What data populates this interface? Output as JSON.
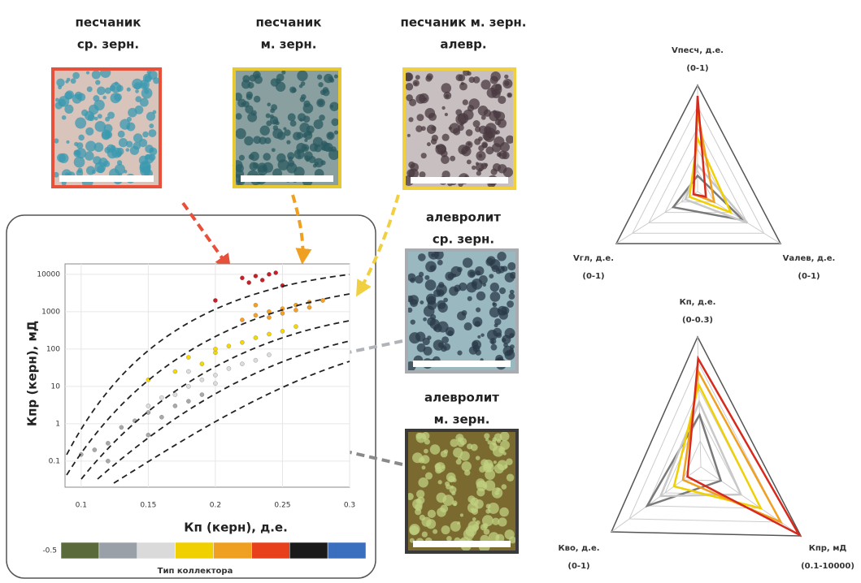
{
  "thin_sections": [
    {
      "lines": [
        "песчаник",
        "ср. зерн."
      ],
      "frame": "#e8503a",
      "base": "#d9c4bc",
      "grain": "#3a9ab0"
    },
    {
      "lines": [
        "песчаник",
        "м. зерн."
      ],
      "frame": "#e8c830",
      "base": "#8aa0a0",
      "grain": "#2a5a60"
    },
    {
      "lines": [
        "песчаник м. зерн.",
        "алевр."
      ],
      "frame": "#f0d040",
      "base": "#c8c0c0",
      "grain": "#4a3a40"
    },
    {
      "lines": [
        "алевролит",
        "ср. зерн."
      ],
      "frame": "#a8acb0",
      "base": "#9ab8c0",
      "grain": "#2a3a48"
    },
    {
      "lines": [
        "алевролит",
        "м. зерн."
      ],
      "frame": "#3a3a3a",
      "base": "#7a6a30",
      "grain": "#c0d080"
    }
  ],
  "scatter": {
    "x_label": "Кп (керн), д.е.",
    "y_label": "Кпр (керн), мД",
    "xlim": [
      0.088,
      0.3
    ],
    "ylim": [
      0.02,
      19000
    ],
    "xticks": [
      0.1,
      0.15,
      0.2,
      0.25,
      0.3
    ],
    "yticks": [
      0.1,
      1,
      10,
      100,
      1000,
      10000
    ],
    "log_y": true,
    "series": [
      {
        "color": "#a8a8a8",
        "x": [
          0.1,
          0.12,
          0.13,
          0.14,
          0.15,
          0.16,
          0.17,
          0.18,
          0.12,
          0.15,
          0.19,
          0.11
        ],
        "y": [
          0.15,
          0.3,
          0.8,
          1.2,
          2,
          1.5,
          3,
          4,
          0.1,
          0.5,
          6,
          0.2
        ]
      },
      {
        "color": "#dcdcdc",
        "x": [
          0.15,
          0.17,
          0.18,
          0.19,
          0.2,
          0.21,
          0.22,
          0.23,
          0.16,
          0.2,
          0.24,
          0.18
        ],
        "y": [
          3,
          6,
          10,
          15,
          20,
          30,
          40,
          50,
          5,
          12,
          70,
          25
        ]
      },
      {
        "color": "#f5d800",
        "x": [
          0.15,
          0.17,
          0.19,
          0.2,
          0.21,
          0.22,
          0.23,
          0.24,
          0.18,
          0.25,
          0.26,
          0.2
        ],
        "y": [
          15,
          25,
          40,
          80,
          120,
          150,
          200,
          250,
          60,
          300,
          400,
          100
        ]
      },
      {
        "color": "#f5a020",
        "x": [
          0.22,
          0.23,
          0.24,
          0.25,
          0.26,
          0.27,
          0.28,
          0.24,
          0.25,
          0.26,
          0.27,
          0.23
        ],
        "y": [
          600,
          800,
          1000,
          1200,
          1500,
          1800,
          2000,
          700,
          900,
          1100,
          1300,
          1500
        ]
      },
      {
        "color": "#c81e28",
        "x": [
          0.2,
          0.22,
          0.225,
          0.23,
          0.235,
          0.24,
          0.245,
          0.25
        ],
        "y": [
          2000,
          8000,
          6000,
          9000,
          7000,
          10000,
          11000,
          5000
        ]
      }
    ]
  },
  "colorbar": {
    "label": "Тип коллектора",
    "start_label": "-0.5",
    "colors": [
      "#5a6a3a",
      "#9aa0a8",
      "#dadada",
      "#f0d000",
      "#f0a020",
      "#e8401c",
      "#1a1a1a",
      "#3a6fc0"
    ]
  },
  "radar_composition": {
    "axes": [
      {
        "name": "Vпесч, д.е.",
        "range_label": "(0-1)",
        "range": [
          0,
          1
        ]
      },
      {
        "name": "Vалев, д.е.",
        "range_label": "(0-1)",
        "range": [
          0,
          1
        ]
      },
      {
        "name": "Vгл, д.е.",
        "range_label": "(0-1)",
        "range": [
          0,
          1
        ]
      }
    ],
    "series": [
      {
        "color": "#7a7a7a",
        "values": [
          0.15,
          0.55,
          0.3
        ]
      },
      {
        "color": "#c8c8c8",
        "values": [
          0.25,
          0.6,
          0.15
        ]
      },
      {
        "color": "#f0d000",
        "values": [
          0.5,
          0.4,
          0.1
        ]
      },
      {
        "color": "#f0a020",
        "values": [
          0.75,
          0.2,
          0.05
        ]
      },
      {
        "color": "#d82a1c",
        "values": [
          0.9,
          0.1,
          0.05
        ]
      }
    ]
  },
  "radar_properties": {
    "axes": [
      {
        "name": "Кп, д.е.",
        "range_label": "(0-0.3)",
        "range": [
          0,
          0.3
        ]
      },
      {
        "name": "Кпр, мД",
        "range_label": "(0.1-10000)",
        "range": [
          0.1,
          10000
        ],
        "log": true
      },
      {
        "name": "Кво, д.е.",
        "range_label": "(0-1)",
        "range": [
          0,
          1
        ]
      }
    ],
    "series": [
      {
        "color": "#7a7a7a",
        "values": [
          0.12,
          1,
          0.6
        ]
      },
      {
        "color": "#c8c8c8",
        "values": [
          0.15,
          10,
          0.45
        ]
      },
      {
        "color": "#f0d000",
        "values": [
          0.19,
          100,
          0.3
        ]
      },
      {
        "color": "#f0a020",
        "values": [
          0.22,
          1000,
          0.2
        ]
      },
      {
        "color": "#d82a1c",
        "values": [
          0.25,
          8000,
          0.15
        ]
      }
    ]
  }
}
